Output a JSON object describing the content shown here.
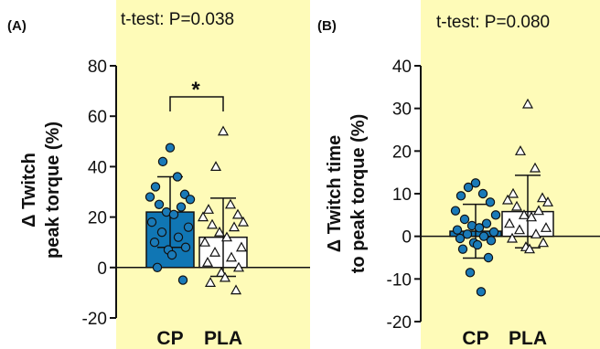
{
  "colors": {
    "background": "#fefbb8",
    "cp_bar": "#1076b4",
    "cp_point": "#1a7ab8",
    "pla_bar": "#ffffff",
    "axis": "#111111"
  },
  "chart_data": [
    {
      "type": "bar",
      "panel_label": "(A)",
      "title": "t-test: P=0.038",
      "ylabel_line1": "Δ Twitch",
      "ylabel_line2": "peak torque (%)",
      "categories": [
        "CP",
        "PLA"
      ],
      "ylim": [
        -20,
        80
      ],
      "yticks": [
        -20,
        0,
        20,
        40,
        60,
        80
      ],
      "means": [
        22,
        12
      ],
      "sd": [
        14,
        15.5
      ],
      "significance": "*",
      "series": [
        {
          "category": "CP",
          "marker": "circle",
          "points": [
            47.5,
            42,
            36,
            32,
            29,
            28,
            27,
            25,
            24,
            22,
            21,
            18,
            16,
            14,
            12,
            10,
            8,
            7,
            5,
            0,
            -5
          ]
        },
        {
          "category": "PLA",
          "marker": "triangle",
          "points": [
            54,
            40,
            25,
            23,
            21,
            20,
            18,
            17,
            16,
            14,
            12,
            10,
            8,
            6,
            4,
            2,
            0,
            -2,
            -4,
            -6,
            -9
          ]
        }
      ]
    },
    {
      "type": "bar",
      "panel_label": "(B)",
      "title": "t-test: P=0.080",
      "ylabel_line1": "Δ Twitch time",
      "ylabel_line2": "to peak torque (%)",
      "categories": [
        "CP",
        "PLA"
      ],
      "ylim": [
        -20,
        40
      ],
      "yticks": [
        -20,
        -10,
        0,
        10,
        20,
        30,
        40
      ],
      "means": [
        1.2,
        5.8
      ],
      "sd": [
        6.3,
        8.5
      ],
      "significance": "",
      "series": [
        {
          "category": "CP",
          "marker": "circle",
          "points": [
            12.5,
            11.5,
            10,
            9.5,
            8,
            6,
            5,
            4,
            3,
            2.5,
            2,
            1.5,
            1,
            0.5,
            0,
            -0.5,
            -1,
            -1.5,
            -2,
            -3,
            -5,
            -8.5,
            -13
          ]
        },
        {
          "category": "PLA",
          "marker": "triangle",
          "points": [
            31,
            20,
            16,
            10,
            9,
            8.5,
            8,
            7,
            6,
            5,
            4.5,
            3,
            2,
            1.5,
            0.5,
            -0.5,
            -1.5,
            -2.5,
            -3
          ]
        }
      ]
    }
  ]
}
